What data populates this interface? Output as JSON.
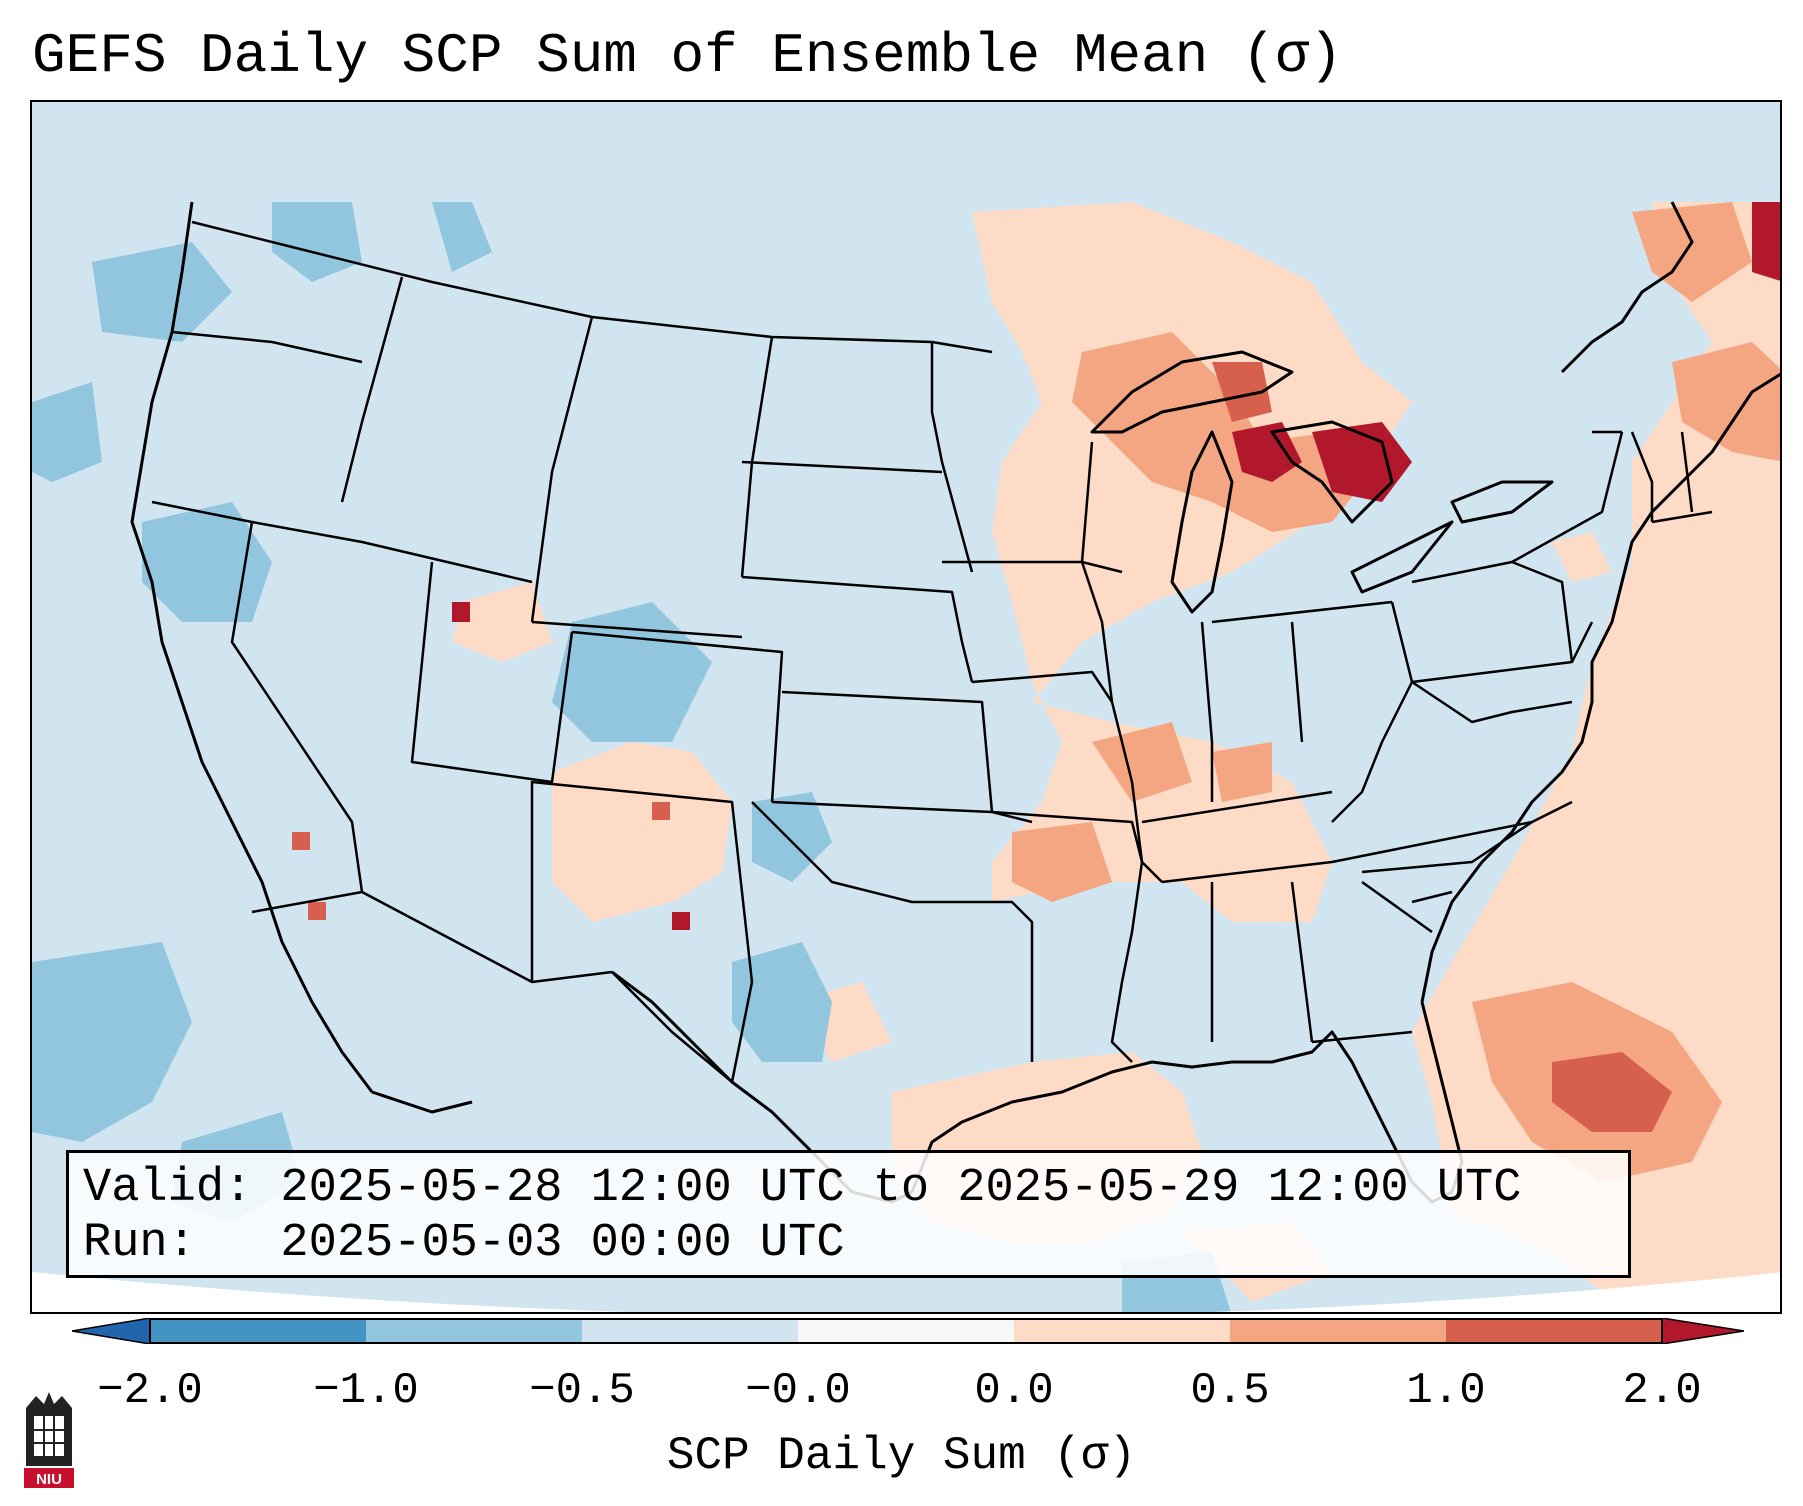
{
  "title": "GEFS Daily SCP Sum of Ensemble Mean (σ)",
  "info": {
    "valid": "Valid: 2025-05-28 12:00 UTC to 2025-05-29 12:00 UTC",
    "run": "Run:   2025-05-03 00:00 UTC"
  },
  "colorbar": {
    "label": "SCP Daily Sum (σ)",
    "ticks": [
      "−2.0",
      "−1.0",
      "−0.5",
      "−0.0",
      "0.0",
      "0.5",
      "1.0",
      "2.0"
    ],
    "colors": [
      "#2166ac",
      "#4393c3",
      "#92c5de",
      "#d1e5f0",
      "#f7f7f7",
      "#fddbc7",
      "#f4a582",
      "#d6604d",
      "#b2182b"
    ]
  },
  "logo": {
    "text": "NIU",
    "icon": "university-tower-icon"
  },
  "map": {
    "type": "gridded-field",
    "projection": "lambert-conformal-conus",
    "background_category": "-0.5 to 0.0",
    "features": [
      "state-borders",
      "coastlines",
      "great-lakes"
    ]
  }
}
